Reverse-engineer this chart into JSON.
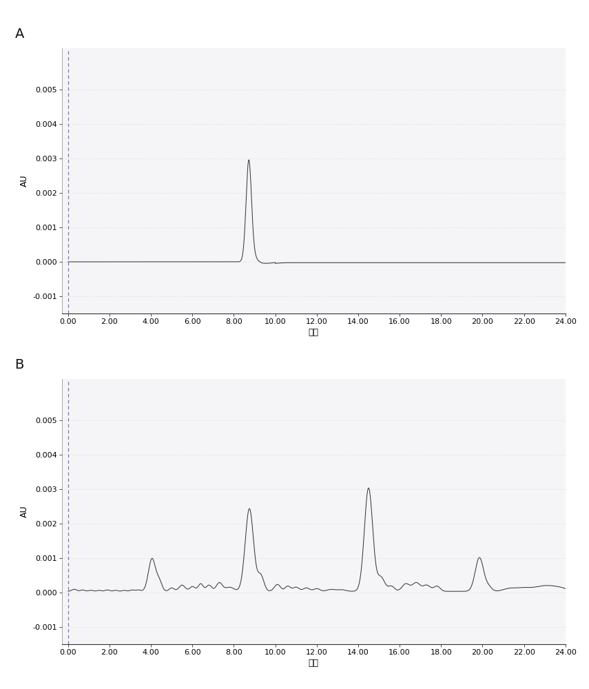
{
  "background_color": "#ffffff",
  "plot_bg_color": "#f5f5f8",
  "panel_label_A": "A",
  "panel_label_B": "B",
  "xlabel": "分钟",
  "ylabel": "AU",
  "xlim": [
    -0.3,
    24.0
  ],
  "ylim_A": [
    -0.0015,
    0.0062
  ],
  "ylim_B": [
    -0.0015,
    0.0062
  ],
  "yticks": [
    -0.001,
    0.0,
    0.001,
    0.002,
    0.003,
    0.004,
    0.005
  ],
  "xticks": [
    0.0,
    2.0,
    4.0,
    6.0,
    8.0,
    10.0,
    12.0,
    14.0,
    16.0,
    18.0,
    20.0,
    22.0,
    24.0
  ],
  "line_color": "#3a3a3a",
  "dashed_line_color": "#7777bb",
  "grid_color": "#cccccc",
  "panel_fontsize": 14,
  "tick_fontsize": 8,
  "label_fontsize": 9,
  "figsize": [
    8.55,
    10.0
  ],
  "dpi": 100
}
